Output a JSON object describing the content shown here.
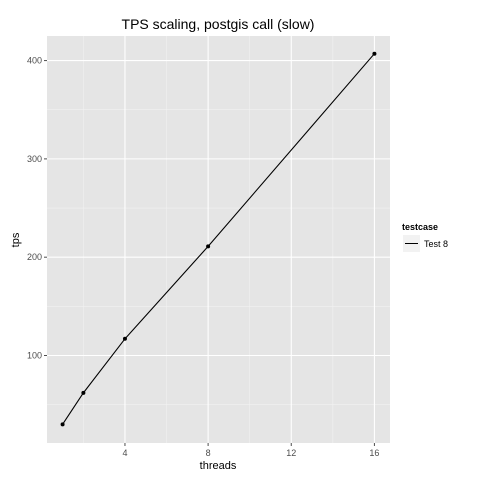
{
  "chart_data": {
    "type": "line",
    "title": "TPS scaling, postgis call (slow)",
    "xlabel": "threads",
    "ylabel": "tps",
    "x": [
      1,
      2,
      4,
      8,
      16
    ],
    "xlim": [
      0.25,
      16.75
    ],
    "ylim": [
      11,
      425
    ],
    "xticks": [
      4,
      8,
      12,
      16
    ],
    "yticks": [
      100,
      200,
      300,
      400
    ],
    "grid": true,
    "legend_position": "right",
    "legend_title": "testcase",
    "series": [
      {
        "name": "Test 8",
        "color": "#000000",
        "values": [
          30,
          62,
          117,
          211,
          407
        ]
      }
    ]
  }
}
